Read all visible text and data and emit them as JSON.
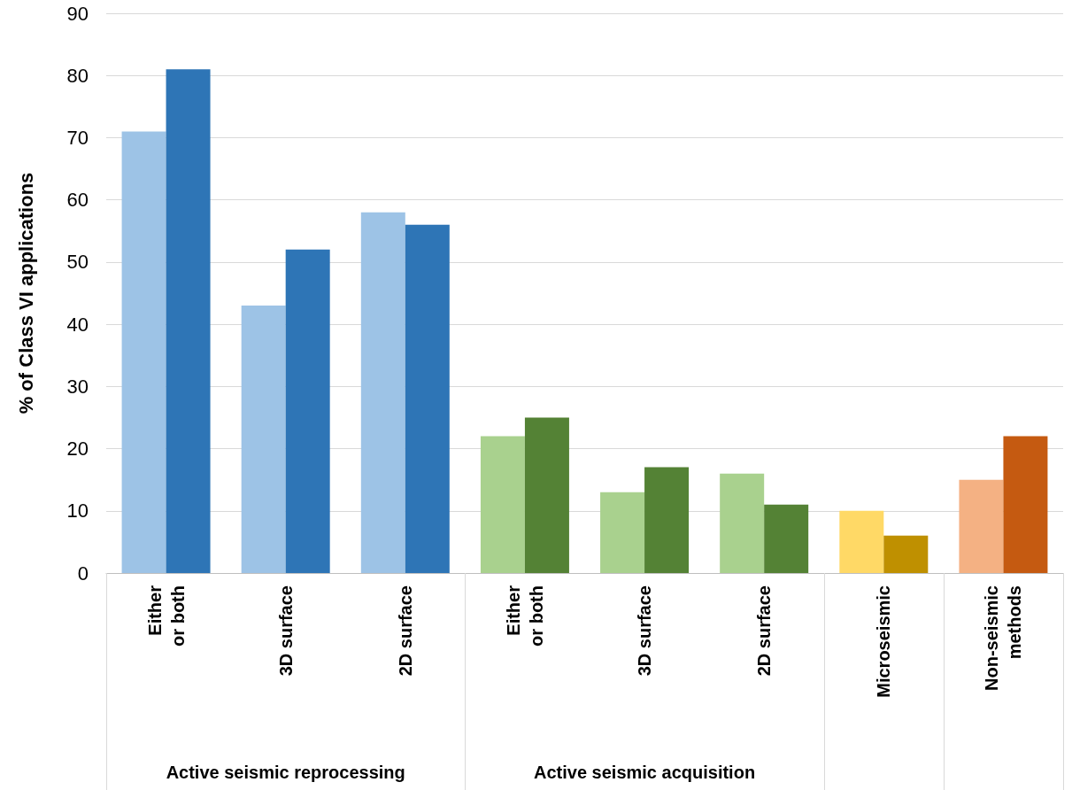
{
  "chart_data": {
    "type": "bar",
    "ylabel": "% of Class VI applications",
    "categories": [
      "Either or both",
      "3D surface",
      "2D surface",
      "Either or both",
      "3D surface",
      "2D surface",
      "Microseismic",
      "Non-seismic methods"
    ],
    "series": [
      {
        "values": [
          71,
          43,
          58,
          22,
          13,
          16,
          10,
          15
        ],
        "colors": [
          "#9dc3e6",
          "#9dc3e6",
          "#9dc3e6",
          "#a9d18e",
          "#a9d18e",
          "#a9d18e",
          "#ffd966",
          "#f4b183"
        ]
      },
      {
        "values": [
          81,
          52,
          56,
          25,
          17,
          11,
          6,
          22
        ],
        "colors": [
          "#2e75b6",
          "#2e75b6",
          "#2e75b6",
          "#548235",
          "#548235",
          "#548235",
          "#bf9000",
          "#c55a11"
        ]
      }
    ],
    "annotations": [
      "Active seismic reprocessing",
      "Active seismic acquisition"
    ],
    "ylim": [
      0,
      90
    ],
    "yticks": [
      0,
      10,
      20,
      30,
      40,
      50,
      60,
      70,
      80,
      90
    ],
    "grid": "y"
  }
}
